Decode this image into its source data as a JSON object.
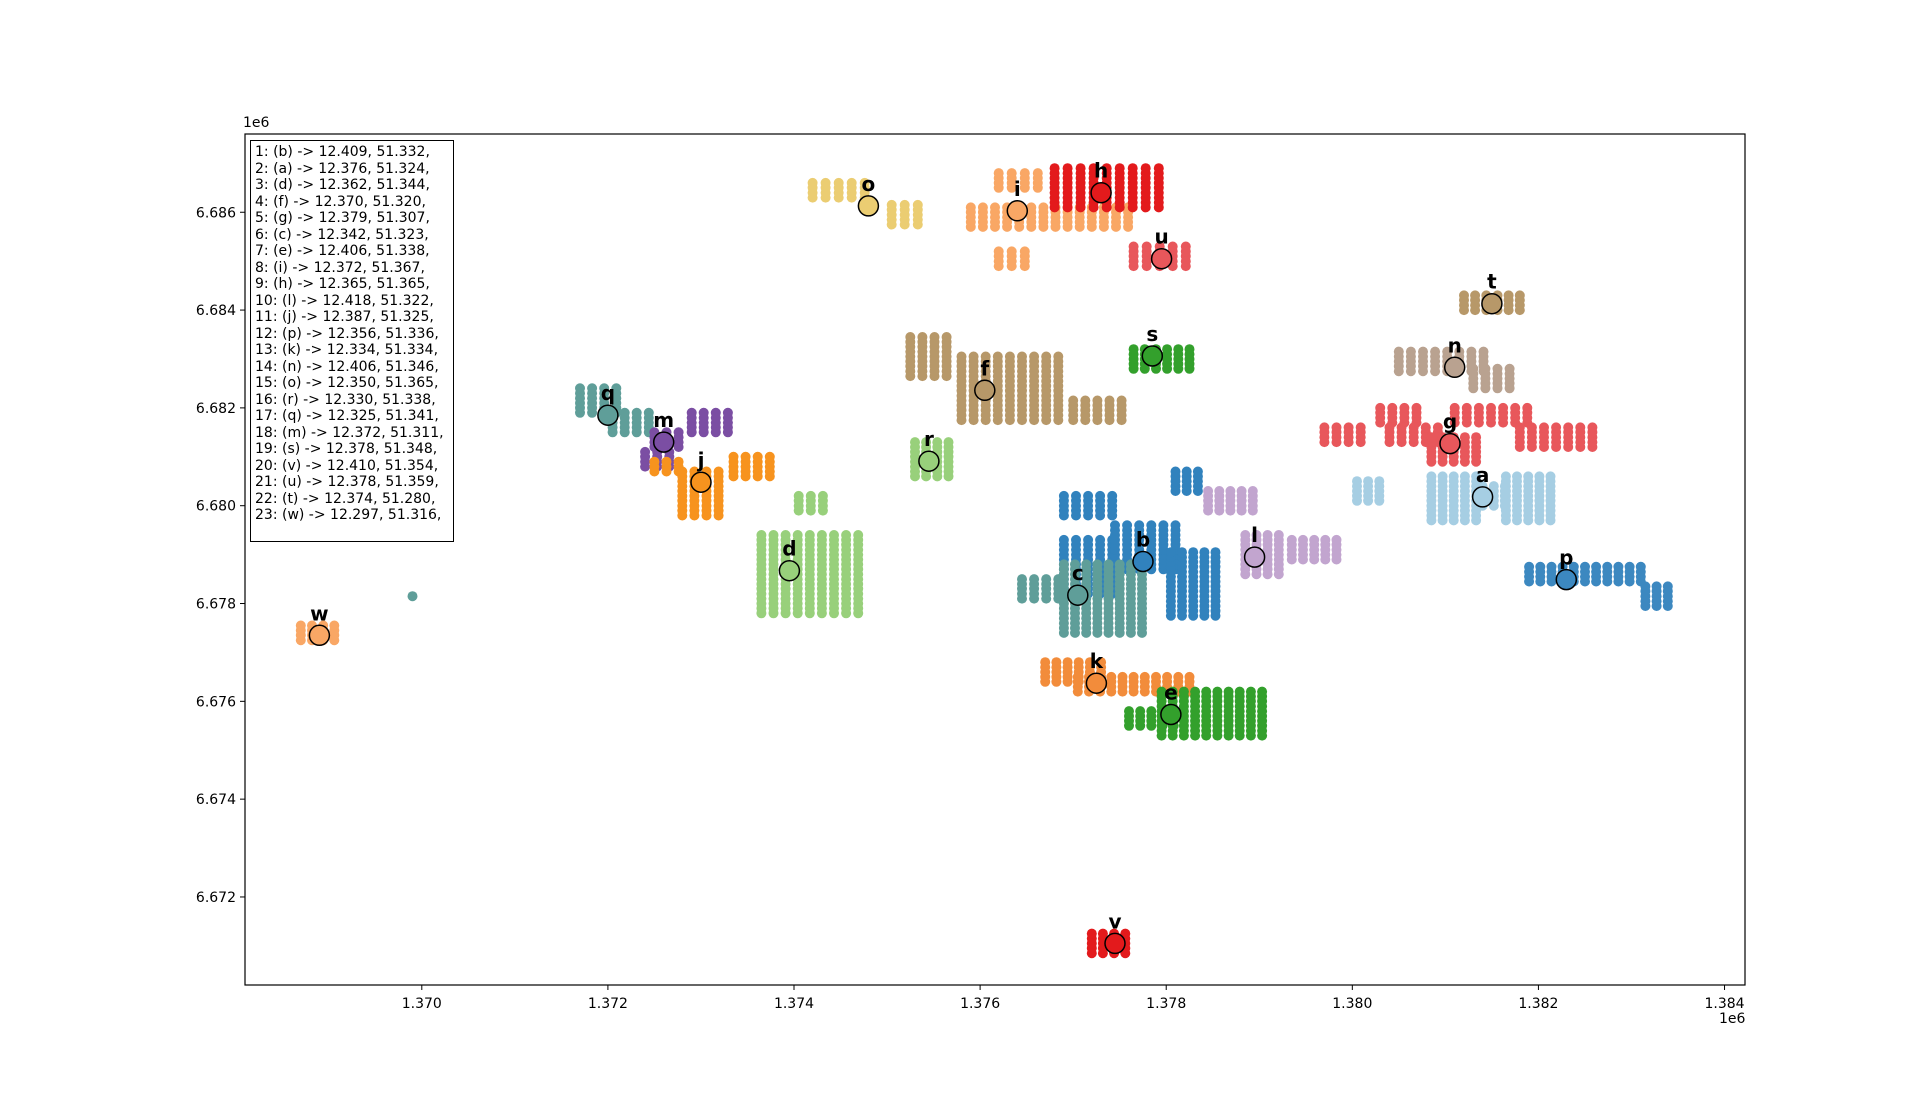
{
  "chart_data": {
    "type": "scatter",
    "title": "",
    "xlabel": "",
    "ylabel": "",
    "x_offset_label": "1e6",
    "y_offset_label": "1e6",
    "xlim": [
      1.3681,
      1.38422
    ],
    "ylim": [
      6.6702,
      6.6876
    ],
    "xticks": [
      1.37,
      1.372,
      1.374,
      1.376,
      1.378,
      1.38,
      1.382,
      1.384
    ],
    "xtick_labels": [
      "1.370",
      "1.372",
      "1.374",
      "1.376",
      "1.378",
      "1.380",
      "1.382",
      "1.384"
    ],
    "yticks": [
      6.672,
      6.674,
      6.676,
      6.678,
      6.68,
      6.682,
      6.684,
      6.686
    ],
    "ytick_labels": [
      "6.672",
      "6.674",
      "6.676",
      "6.678",
      "6.680",
      "6.682",
      "6.684",
      "6.686"
    ],
    "grid": false,
    "legend_placement": "top-left",
    "legend_lines": [
      "1: (b) -> 12.409, 51.332,",
      "2: (a) -> 12.376, 51.324,",
      "3: (d) -> 12.362, 51.344,",
      "4: (f) -> 12.370, 51.320,",
      "5: (g) -> 12.379, 51.307,",
      "6: (c) -> 12.342, 51.323,",
      "7: (e) -> 12.406, 51.338,",
      "8: (i) -> 12.372, 51.367,",
      "9: (h) -> 12.365, 51.365,",
      "10: (l) -> 12.418, 51.322,",
      "11: (j) -> 12.387, 51.325,",
      "12: (p) -> 12.356, 51.336,",
      "13: (k) -> 12.334, 51.334,",
      "14: (n) -> 12.406, 51.346,",
      "15: (o) -> 12.350, 51.365,",
      "16: (r) -> 12.330, 51.338,",
      "17: (q) -> 12.325, 51.341,",
      "18: (m) -> 12.372, 51.311,",
      "19: (s) -> 12.378, 51.348,",
      "20: (v) -> 12.410, 51.354,",
      "21: (u) -> 12.378, 51.359,",
      "22: (t) -> 12.374, 51.280,",
      "23: (w) -> 12.297, 51.316,"
    ],
    "centroids": [
      {
        "label": "a",
        "x": 1.3814,
        "y": 6.68018,
        "color": "#a6cee3"
      },
      {
        "label": "b",
        "x": 1.37775,
        "y": 6.67886,
        "color": "#3182bd"
      },
      {
        "label": "c",
        "x": 1.37705,
        "y": 6.67817,
        "color": "#5f9e99"
      },
      {
        "label": "d",
        "x": 1.37395,
        "y": 6.67867,
        "color": "#98d07b"
      },
      {
        "label": "e",
        "x": 1.37805,
        "y": 6.67573,
        "color": "#33a02c"
      },
      {
        "label": "f",
        "x": 1.37605,
        "y": 6.68236,
        "color": "#b79869"
      },
      {
        "label": "g",
        "x": 1.38105,
        "y": 6.68127,
        "color": "#e8575b"
      },
      {
        "label": "h",
        "x": 1.3773,
        "y": 6.6864,
        "color": "#e31a1c"
      },
      {
        "label": "i",
        "x": 1.3764,
        "y": 6.68603,
        "color": "#f9a765"
      },
      {
        "label": "j",
        "x": 1.373,
        "y": 6.68048,
        "color": "#f7931e"
      },
      {
        "label": "k",
        "x": 1.37725,
        "y": 6.67637,
        "color": "#f28c3b"
      },
      {
        "label": "l",
        "x": 1.37895,
        "y": 6.67895,
        "color": "#c2a5cf"
      },
      {
        "label": "m",
        "x": 1.3726,
        "y": 6.6813,
        "color": "#7b4ea3"
      },
      {
        "label": "n",
        "x": 1.3811,
        "y": 6.68283,
        "color": "#b9a290"
      },
      {
        "label": "o",
        "x": 1.3748,
        "y": 6.68613,
        "color": "#ebcd72"
      },
      {
        "label": "p",
        "x": 1.3823,
        "y": 6.67849,
        "color": "#3c88c0"
      },
      {
        "label": "q",
        "x": 1.372,
        "y": 6.68185,
        "color": "#5f9e99"
      },
      {
        "label": "r",
        "x": 1.37545,
        "y": 6.68091,
        "color": "#98d07b"
      },
      {
        "label": "s",
        "x": 1.37785,
        "y": 6.68306,
        "color": "#33a02c"
      },
      {
        "label": "t",
        "x": 1.3815,
        "y": 6.68413,
        "color": "#b79869"
      },
      {
        "label": "u",
        "x": 1.37795,
        "y": 6.68505,
        "color": "#e8575b"
      },
      {
        "label": "v",
        "x": 1.37745,
        "y": 6.67105,
        "color": "#e31a1c"
      },
      {
        "label": "w",
        "x": 1.3689,
        "y": 6.67735,
        "color": "#f9a765"
      }
    ],
    "point_blocks": [
      {
        "group": "o",
        "color": "#ebcd72",
        "x0": 1.3742,
        "y0": 6.6863,
        "nx": 5,
        "ny": 4,
        "dx": 0.00014,
        "dy": 0.0001
      },
      {
        "group": "o",
        "color": "#ebcd72",
        "x0": 1.37505,
        "y0": 6.68575,
        "nx": 3,
        "ny": 5,
        "dx": 0.00014,
        "dy": 0.0001
      },
      {
        "group": "i",
        "color": "#f9a765",
        "x0": 1.3762,
        "y0": 6.6865,
        "nx": 4,
        "ny": 4,
        "dx": 0.00014,
        "dy": 0.0001
      },
      {
        "group": "i",
        "color": "#f9a765",
        "x0": 1.3759,
        "y0": 6.6857,
        "nx": 14,
        "ny": 5,
        "dx": 0.00013,
        "dy": 0.0001
      },
      {
        "group": "i",
        "color": "#f9a765",
        "x0": 1.3762,
        "y0": 6.6849,
        "nx": 3,
        "ny": 4,
        "dx": 0.00014,
        "dy": 0.0001
      },
      {
        "group": "h",
        "color": "#e31a1c",
        "x0": 1.3768,
        "y0": 6.6861,
        "nx": 9,
        "ny": 9,
        "dx": 0.00014,
        "dy": 0.0001
      },
      {
        "group": "u",
        "color": "#e8575b",
        "x0": 1.37765,
        "y0": 6.6849,
        "nx": 5,
        "ny": 5,
        "dx": 0.00014,
        "dy": 0.0001
      },
      {
        "group": "t",
        "color": "#b79869",
        "x0": 1.3812,
        "y0": 6.684,
        "nx": 6,
        "ny": 4,
        "dx": 0.00012,
        "dy": 0.0001
      },
      {
        "group": "s",
        "color": "#33a02c",
        "x0": 1.37765,
        "y0": 6.6828,
        "nx": 6,
        "ny": 5,
        "dx": 0.00012,
        "dy": 0.0001
      },
      {
        "group": "n",
        "color": "#b9a290",
        "x0": 1.3805,
        "y0": 6.68275,
        "nx": 8,
        "ny": 5,
        "dx": 0.00013,
        "dy": 0.0001
      },
      {
        "group": "n",
        "color": "#b9a290",
        "x0": 1.3813,
        "y0": 6.6824,
        "nx": 4,
        "ny": 5,
        "dx": 0.00013,
        "dy": 0.0001
      },
      {
        "group": "f",
        "color": "#b79869",
        "x0": 1.37525,
        "y0": 6.68265,
        "nx": 4,
        "ny": 9,
        "dx": 0.00013,
        "dy": 0.0001
      },
      {
        "group": "f",
        "color": "#b79869",
        "x0": 1.3758,
        "y0": 6.68175,
        "nx": 9,
        "ny": 14,
        "dx": 0.00013,
        "dy": 0.0001
      },
      {
        "group": "f",
        "color": "#b79869",
        "x0": 1.377,
        "y0": 6.68175,
        "nx": 5,
        "ny": 5,
        "dx": 0.00013,
        "dy": 0.0001
      },
      {
        "group": "q",
        "color": "#5f9e99",
        "x0": 1.3717,
        "y0": 6.6819,
        "nx": 4,
        "ny": 6,
        "dx": 0.00013,
        "dy": 0.0001
      },
      {
        "group": "q",
        "color": "#5f9e99",
        "x0": 1.37205,
        "y0": 6.6815,
        "nx": 4,
        "ny": 5,
        "dx": 0.00013,
        "dy": 0.0001
      },
      {
        "group": "m",
        "color": "#7b4ea3",
        "x0": 1.3725,
        "y0": 6.6812,
        "nx": 3,
        "ny": 4,
        "dx": 0.00013,
        "dy": 0.0001
      },
      {
        "group": "m",
        "color": "#7b4ea3",
        "x0": 1.3729,
        "y0": 6.6815,
        "nx": 4,
        "ny": 5,
        "dx": 0.00013,
        "dy": 0.0001
      },
      {
        "group": "m",
        "color": "#7b4ea3",
        "x0": 1.3724,
        "y0": 6.6808,
        "nx": 3,
        "ny": 4,
        "dx": 0.00013,
        "dy": 0.0001
      },
      {
        "group": "j",
        "color": "#f7931e",
        "x0": 1.3725,
        "y0": 6.6807,
        "nx": 3,
        "ny": 3,
        "dx": 0.00013,
        "dy": 0.0001
      },
      {
        "group": "j",
        "color": "#f7931e",
        "x0": 1.3728,
        "y0": 6.6798,
        "nx": 4,
        "ny": 10,
        "dx": 0.00013,
        "dy": 0.0001
      },
      {
        "group": "j",
        "color": "#f7931e",
        "x0": 1.37335,
        "y0": 6.6806,
        "nx": 4,
        "ny": 5,
        "dx": 0.00013,
        "dy": 0.0001
      },
      {
        "group": "r",
        "color": "#98d07b",
        "x0": 1.3753,
        "y0": 6.6806,
        "nx": 4,
        "ny": 8,
        "dx": 0.00012,
        "dy": 0.0001
      },
      {
        "group": "d",
        "color": "#98d07b",
        "x0": 1.37405,
        "y0": 6.6799,
        "nx": 3,
        "ny": 4,
        "dx": 0.00013,
        "dy": 0.0001
      },
      {
        "group": "d",
        "color": "#98d07b",
        "x0": 1.37365,
        "y0": 6.6778,
        "nx": 9,
        "ny": 17,
        "dx": 0.00013,
        "dy": 0.0001
      },
      {
        "group": "b",
        "color": "#3182bd",
        "x0": 1.3769,
        "y0": 6.6798,
        "nx": 5,
        "ny": 5,
        "dx": 0.00013,
        "dy": 0.0001
      },
      {
        "group": "b",
        "color": "#3182bd",
        "x0": 1.3769,
        "y0": 6.6782,
        "nx": 5,
        "ny": 12,
        "dx": 0.00013,
        "dy": 0.0001
      },
      {
        "group": "b",
        "color": "#3182bd",
        "x0": 1.37745,
        "y0": 6.6787,
        "nx": 6,
        "ny": 10,
        "dx": 0.00013,
        "dy": 0.0001
      },
      {
        "group": "b",
        "color": "#3182bd",
        "x0": 1.37805,
        "y0": 6.67775,
        "nx": 5,
        "ny": 14,
        "dx": 0.00012,
        "dy": 0.0001
      },
      {
        "group": "b",
        "color": "#3182bd",
        "x0": 1.3781,
        "y0": 6.6803,
        "nx": 3,
        "ny": 5,
        "dx": 0.00012,
        "dy": 0.0001
      },
      {
        "group": "l",
        "color": "#c2a5cf",
        "x0": 1.37845,
        "y0": 6.6799,
        "nx": 5,
        "ny": 5,
        "dx": 0.00012,
        "dy": 0.0001
      },
      {
        "group": "l",
        "color": "#c2a5cf",
        "x0": 1.37885,
        "y0": 6.6786,
        "nx": 4,
        "ny": 9,
        "dx": 0.00012,
        "dy": 0.0001
      },
      {
        "group": "l",
        "color": "#c2a5cf",
        "x0": 1.37935,
        "y0": 6.6789,
        "nx": 5,
        "ny": 5,
        "dx": 0.00012,
        "dy": 0.0001
      },
      {
        "group": "c",
        "color": "#5f9e99",
        "x0": 1.3699,
        "y0": 6.67815,
        "nx": 1,
        "ny": 1,
        "dx": 0.00013,
        "dy": 0.0001
      },
      {
        "group": "c",
        "color": "#5f9e99",
        "x0": 1.37645,
        "y0": 6.6781,
        "nx": 4,
        "ny": 5,
        "dx": 0.00013,
        "dy": 0.0001
      },
      {
        "group": "c",
        "color": "#5f9e99",
        "x0": 1.3769,
        "y0": 6.6774,
        "nx": 8,
        "ny": 15,
        "dx": 0.00012,
        "dy": 0.0001
      },
      {
        "group": "k",
        "color": "#f28c3b",
        "x0": 1.3767,
        "y0": 6.6764,
        "nx": 6,
        "ny": 5,
        "dx": 0.00012,
        "dy": 0.0001
      },
      {
        "group": "k",
        "color": "#f28c3b",
        "x0": 1.37705,
        "y0": 6.6762,
        "nx": 11,
        "ny": 4,
        "dx": 0.00012,
        "dy": 0.0001
      },
      {
        "group": "e",
        "color": "#33a02c",
        "x0": 1.3776,
        "y0": 6.6755,
        "nx": 5,
        "ny": 4,
        "dx": 0.00012,
        "dy": 0.0001
      },
      {
        "group": "e",
        "color": "#33a02c",
        "x0": 1.37795,
        "y0": 6.6753,
        "nx": 10,
        "ny": 10,
        "dx": 0.00012,
        "dy": 0.0001
      },
      {
        "group": "g",
        "color": "#e8575b",
        "x0": 1.3797,
        "y0": 6.6813,
        "nx": 4,
        "ny": 4,
        "dx": 0.00013,
        "dy": 0.0001
      },
      {
        "group": "g",
        "color": "#e8575b",
        "x0": 1.3803,
        "y0": 6.6817,
        "nx": 4,
        "ny": 4,
        "dx": 0.00013,
        "dy": 0.0001
      },
      {
        "group": "g",
        "color": "#e8575b",
        "x0": 1.3804,
        "y0": 6.6813,
        "nx": 5,
        "ny": 4,
        "dx": 0.00013,
        "dy": 0.0001
      },
      {
        "group": "g",
        "color": "#e8575b",
        "x0": 1.38085,
        "y0": 6.6809,
        "nx": 5,
        "ny": 6,
        "dx": 0.00012,
        "dy": 0.0001
      },
      {
        "group": "g",
        "color": "#e8575b",
        "x0": 1.3811,
        "y0": 6.6817,
        "nx": 7,
        "ny": 4,
        "dx": 0.00013,
        "dy": 0.0001
      },
      {
        "group": "g",
        "color": "#e8575b",
        "x0": 1.3818,
        "y0": 6.6812,
        "nx": 7,
        "ny": 5,
        "dx": 0.00013,
        "dy": 0.0001
      },
      {
        "group": "a",
        "color": "#a6cee3",
        "x0": 1.38005,
        "y0": 6.6801,
        "nx": 3,
        "ny": 5,
        "dx": 0.00012,
        "dy": 0.0001
      },
      {
        "group": "a",
        "color": "#a6cee3",
        "x0": 1.38085,
        "y0": 6.6797,
        "nx": 5,
        "ny": 10,
        "dx": 0.00012,
        "dy": 0.0001
      },
      {
        "group": "a",
        "color": "#a6cee3",
        "x0": 1.3814,
        "y0": 6.68,
        "nx": 3,
        "ny": 5,
        "dx": 0.00012,
        "dy": 0.0001
      },
      {
        "group": "a",
        "color": "#a6cee3",
        "x0": 1.38165,
        "y0": 6.6797,
        "nx": 5,
        "ny": 10,
        "dx": 0.00012,
        "dy": 0.0001
      },
      {
        "group": "p",
        "color": "#3c88c0",
        "x0": 1.3819,
        "y0": 6.67845,
        "nx": 11,
        "ny": 4,
        "dx": 0.00012,
        "dy": 0.0001
      },
      {
        "group": "p",
        "color": "#3c88c0",
        "x0": 1.38315,
        "y0": 6.67795,
        "nx": 3,
        "ny": 5,
        "dx": 0.00012,
        "dy": 0.0001
      },
      {
        "group": "v",
        "color": "#e31a1c",
        "x0": 1.3772,
        "y0": 6.67085,
        "nx": 4,
        "ny": 5,
        "dx": 0.00012,
        "dy": 0.0001
      },
      {
        "group": "w",
        "color": "#f9a765",
        "x0": 1.3687,
        "y0": 6.67725,
        "nx": 4,
        "ny": 4,
        "dx": 0.00012,
        "dy": 0.0001
      }
    ]
  }
}
